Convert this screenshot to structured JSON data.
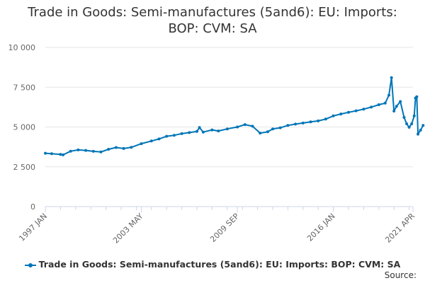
{
  "chart_data": {
    "type": "line",
    "title_lines": [
      "Trade in Goods: Semi-manufactures (5and6): EU: Imports:",
      "BOP: CVM: SA"
    ],
    "xlabel": "",
    "ylabel": "",
    "ylim": [
      0,
      10000
    ],
    "y_ticks": [
      0,
      2500,
      5000,
      7500,
      10000
    ],
    "y_tick_labels": [
      "0",
      "2 500",
      "5 000",
      "7 500",
      "10 000"
    ],
    "x_tick_labels": [
      "1997 JAN",
      "2003 MAY",
      "2009 SEP",
      "2016 JAN",
      "2021 APR"
    ],
    "x_tick_positions": [
      "1997-01",
      "2003-05",
      "2009-09",
      "2016-01",
      "2021-04"
    ],
    "x_range": [
      "1997-01",
      "2021-04"
    ],
    "grid": "horizontal",
    "legend_position": "bottom",
    "series": [
      {
        "name": "Trade in Goods: Semi-manufactures (5and6): EU: Imports: BOP: CVM: SA",
        "color": "#0075b7",
        "points": [
          [
            "1997-01",
            3350
          ],
          [
            "1997-06",
            3320
          ],
          [
            "1998-01",
            3280
          ],
          [
            "1998-03",
            3250
          ],
          [
            "1998-09",
            3480
          ],
          [
            "1999-03",
            3560
          ],
          [
            "1999-09",
            3530
          ],
          [
            "2000-03",
            3470
          ],
          [
            "2000-09",
            3430
          ],
          [
            "2001-03",
            3600
          ],
          [
            "2001-09",
            3710
          ],
          [
            "2002-03",
            3650
          ],
          [
            "2002-09",
            3720
          ],
          [
            "2003-05",
            3950
          ],
          [
            "2004-01",
            4120
          ],
          [
            "2004-07",
            4250
          ],
          [
            "2005-01",
            4420
          ],
          [
            "2005-07",
            4480
          ],
          [
            "2006-01",
            4580
          ],
          [
            "2006-07",
            4650
          ],
          [
            "2007-01",
            4720
          ],
          [
            "2007-03",
            4970
          ],
          [
            "2007-06",
            4680
          ],
          [
            "2008-01",
            4820
          ],
          [
            "2008-06",
            4750
          ],
          [
            "2009-01",
            4880
          ],
          [
            "2009-09",
            5000
          ],
          [
            "2010-03",
            5150
          ],
          [
            "2010-09",
            5050
          ],
          [
            "2011-03",
            4620
          ],
          [
            "2011-09",
            4700
          ],
          [
            "2012-01",
            4880
          ],
          [
            "2012-07",
            4950
          ],
          [
            "2013-01",
            5100
          ],
          [
            "2013-07",
            5180
          ],
          [
            "2014-01",
            5250
          ],
          [
            "2014-07",
            5320
          ],
          [
            "2015-01",
            5380
          ],
          [
            "2015-07",
            5500
          ],
          [
            "2016-01",
            5700
          ],
          [
            "2016-07",
            5820
          ],
          [
            "2017-01",
            5920
          ],
          [
            "2017-07",
            6020
          ],
          [
            "2018-01",
            6120
          ],
          [
            "2018-07",
            6250
          ],
          [
            "2019-01",
            6400
          ],
          [
            "2019-06",
            6500
          ],
          [
            "2019-09",
            7000
          ],
          [
            "2019-11",
            8100
          ],
          [
            "2020-01",
            6000
          ],
          [
            "2020-03",
            6300
          ],
          [
            "2020-06",
            6600
          ],
          [
            "2020-09",
            5600
          ],
          [
            "2020-11",
            5200
          ],
          [
            "2021-01",
            4980
          ],
          [
            "2021-03",
            5200
          ],
          [
            "2021-05",
            5700
          ],
          [
            "2021-06",
            6820
          ],
          [
            "2021-07",
            6900
          ],
          [
            "2021-08",
            4550
          ],
          [
            "2021-10",
            4800
          ],
          [
            "2021-12",
            5100
          ]
        ]
      }
    ]
  },
  "legend": {
    "label": "Trade in Goods: Semi-manufactures (5and6): EU: Imports: BOP: CVM: SA"
  },
  "footer": {
    "source": "Source:"
  }
}
